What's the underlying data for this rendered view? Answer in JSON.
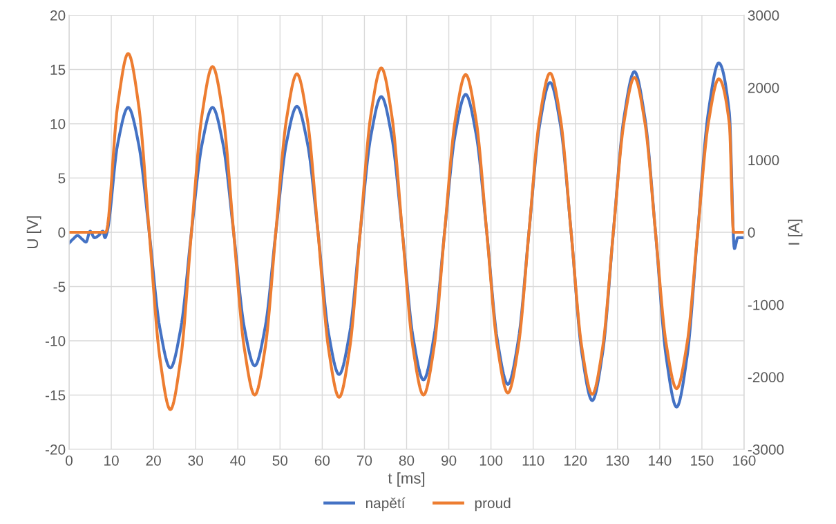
{
  "chart_data": {
    "type": "line",
    "xlabel": "t [ms]",
    "ylabel": "U [V]",
    "y2label": "I [A]",
    "xlim": [
      0,
      160
    ],
    "xticks": [
      0,
      10,
      20,
      30,
      40,
      50,
      60,
      70,
      80,
      90,
      100,
      110,
      120,
      130,
      140,
      150,
      160
    ],
    "ylim": [
      -20,
      20
    ],
    "yticks": [
      -20,
      -15,
      -10,
      -5,
      0,
      5,
      10,
      15,
      20
    ],
    "y2lim": [
      -3000,
      3000
    ],
    "y2ticks": [
      -3000,
      -2000,
      -1000,
      0,
      1000,
      2000,
      3000
    ],
    "grid": true,
    "legend": "bottom",
    "marker": "none",
    "line_style": "solid",
    "series": [
      {
        "name": "napětí",
        "color": "#4472c4",
        "x": [
          0,
          1,
          2,
          3,
          4,
          5,
          6,
          7,
          8,
          8.5,
          9,
          11.5,
          14,
          16.5,
          19,
          21.5,
          24,
          26.5,
          29,
          31.5,
          34,
          36.5,
          39,
          41.5,
          44,
          46.5,
          49,
          51.5,
          54,
          56.5,
          59,
          61.5,
          64,
          66.5,
          69,
          71.5,
          74,
          76.5,
          79,
          81.5,
          84,
          86.5,
          89,
          91.5,
          94,
          96.5,
          99,
          101.5,
          104,
          106.5,
          109,
          111.5,
          114,
          116.5,
          119,
          121.5,
          124,
          126.5,
          129,
          131.5,
          134,
          136.5,
          139,
          141.5,
          144,
          146.5,
          149,
          151.5,
          154,
          156.5,
          157.7,
          158.5,
          160
        ],
        "values": [
          -1.0,
          -0.6,
          -0.3,
          -0.6,
          -0.9,
          0.1,
          -0.5,
          -0.3,
          0.1,
          -0.5,
          0,
          8.1,
          11.5,
          8.1,
          0,
          -8.8,
          -12.5,
          -8.8,
          0,
          8.1,
          11.5,
          8.1,
          0,
          -8.7,
          -12.3,
          -8.7,
          0,
          8.2,
          11.6,
          8.2,
          0,
          -9.3,
          -13.1,
          -9.3,
          0,
          8.8,
          12.5,
          8.8,
          0,
          -9.6,
          -13.6,
          -9.6,
          0,
          9.0,
          12.7,
          9.0,
          0,
          -9.9,
          -14.0,
          -9.9,
          0,
          9.8,
          13.8,
          9.8,
          0,
          -11.0,
          -15.5,
          -11.0,
          0,
          10.5,
          14.8,
          10.5,
          0,
          -11.4,
          -16.1,
          -11.4,
          0,
          11.0,
          15.6,
          11.0,
          -1.5,
          -0.5,
          -0.5
        ]
      },
      {
        "name": "proud",
        "color": "#ed7d31",
        "axis": "y2",
        "x": [
          0,
          8.7,
          11.5,
          14,
          16.5,
          19,
          21.5,
          24,
          26.5,
          29,
          31.5,
          34,
          36.5,
          39,
          41.5,
          44,
          46.5,
          49,
          51.5,
          54,
          56.5,
          59,
          61.5,
          64,
          66.5,
          69,
          71.5,
          74,
          76.5,
          79,
          81.5,
          84,
          86.5,
          89,
          91.5,
          94,
          96.5,
          99,
          101.5,
          104,
          106.5,
          109,
          111.5,
          114,
          116.5,
          119,
          121.5,
          124,
          126.5,
          129,
          131.5,
          134,
          136.5,
          139,
          141.5,
          144,
          146.5,
          149,
          151.5,
          154,
          156.5,
          157.5,
          160
        ],
        "values": [
          0,
          0,
          1750,
          2470,
          1750,
          0,
          -1730,
          -2450,
          -1730,
          0,
          1620,
          2290,
          1620,
          0,
          -1590,
          -2250,
          -1590,
          0,
          1550,
          2190,
          1550,
          0,
          -1610,
          -2280,
          -1610,
          0,
          1610,
          2270,
          1610,
          0,
          -1590,
          -2250,
          -1590,
          0,
          1540,
          2180,
          1540,
          0,
          -1570,
          -2220,
          -1570,
          0,
          1560,
          2200,
          1560,
          0,
          -1580,
          -2240,
          -1580,
          0,
          1510,
          2140,
          1510,
          0,
          -1530,
          -2160,
          -1530,
          0,
          1500,
          2120,
          1500,
          0,
          0
        ]
      }
    ]
  }
}
